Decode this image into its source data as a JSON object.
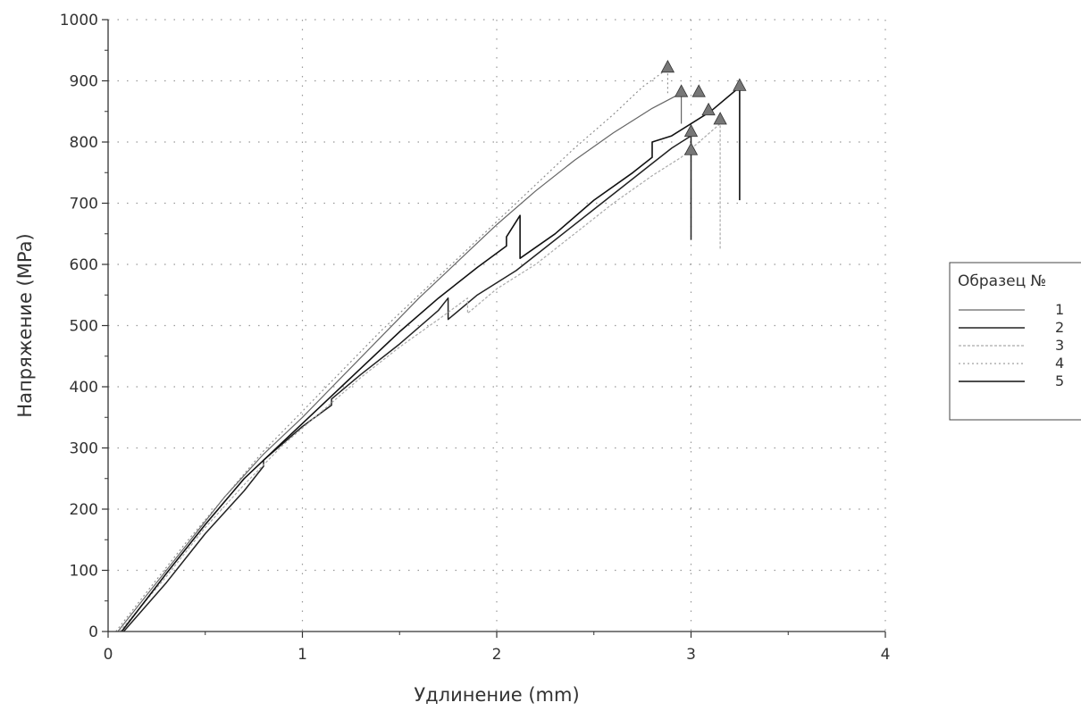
{
  "chart_data": {
    "type": "line",
    "title": "",
    "xlabel": "Удлинение (mm)",
    "ylabel": "Напряжение (MPa)",
    "xlim": [
      0,
      4
    ],
    "ylim": [
      0,
      1000
    ],
    "xticks": [
      0,
      1,
      2,
      3,
      4
    ],
    "yticks": [
      0,
      100,
      200,
      300,
      400,
      500,
      600,
      700,
      800,
      900,
      1000
    ],
    "grid": true,
    "legend": {
      "title": "Образец №",
      "position": "right"
    },
    "colors": {
      "axis": "#333333",
      "grid": "#999999",
      "marker": "#777777",
      "marker_edge": "#333333"
    },
    "series": [
      {
        "name": "1",
        "color": "#666666",
        "points": [
          [
            0.05,
            0
          ],
          [
            0.2,
            60
          ],
          [
            0.4,
            140
          ],
          [
            0.6,
            220
          ],
          [
            0.8,
            290
          ],
          [
            1.0,
            350
          ],
          [
            1.2,
            415
          ],
          [
            1.4,
            480
          ],
          [
            1.6,
            545
          ],
          [
            1.8,
            605
          ],
          [
            2.0,
            665
          ],
          [
            2.2,
            720
          ],
          [
            2.4,
            770
          ],
          [
            2.6,
            815
          ],
          [
            2.8,
            855
          ],
          [
            2.95,
            880
          ],
          [
            2.95,
            830
          ]
        ],
        "break": [
          2.95,
          880
        ]
      },
      {
        "name": "2",
        "color": "#222222",
        "points": [
          [
            0.08,
            0
          ],
          [
            0.3,
            80
          ],
          [
            0.5,
            160
          ],
          [
            0.7,
            230
          ],
          [
            0.8,
            270
          ],
          [
            0.8,
            280
          ],
          [
            1.0,
            335
          ],
          [
            1.15,
            370
          ],
          [
            1.15,
            380
          ],
          [
            1.3,
            420
          ],
          [
            1.5,
            470
          ],
          [
            1.7,
            525
          ],
          [
            1.75,
            545
          ],
          [
            1.75,
            510
          ],
          [
            1.9,
            550
          ],
          [
            2.1,
            590
          ],
          [
            2.3,
            640
          ],
          [
            2.5,
            690
          ],
          [
            2.7,
            740
          ],
          [
            2.8,
            765
          ],
          [
            2.9,
            790
          ],
          [
            3.0,
            810
          ],
          [
            3.0,
            640
          ]
        ],
        "break": [
          3.0,
          810
        ]
      },
      {
        "name": "3",
        "color": "#aaaaaa",
        "points": [
          [
            0.06,
            0
          ],
          [
            0.3,
            90
          ],
          [
            0.5,
            170
          ],
          [
            0.7,
            240
          ],
          [
            0.9,
            305
          ],
          [
            1.1,
            360
          ],
          [
            1.3,
            415
          ],
          [
            1.5,
            465
          ],
          [
            1.7,
            510
          ],
          [
            1.85,
            545
          ],
          [
            1.85,
            520
          ],
          [
            2.0,
            560
          ],
          [
            2.2,
            600
          ],
          [
            2.4,
            650
          ],
          [
            2.6,
            700
          ],
          [
            2.8,
            745
          ],
          [
            2.95,
            775
          ],
          [
            3.15,
            830
          ],
          [
            3.15,
            625
          ]
        ],
        "break": [
          3.15,
          830
        ]
      },
      {
        "name": "4",
        "color": "#888888",
        "points": [
          [
            0.04,
            0
          ],
          [
            0.2,
            65
          ],
          [
            0.4,
            145
          ],
          [
            0.6,
            220
          ],
          [
            0.8,
            295
          ],
          [
            1.0,
            360
          ],
          [
            1.2,
            425
          ],
          [
            1.4,
            490
          ],
          [
            1.6,
            550
          ],
          [
            1.8,
            610
          ],
          [
            2.0,
            670
          ],
          [
            2.2,
            730
          ],
          [
            2.4,
            790
          ],
          [
            2.6,
            845
          ],
          [
            2.75,
            890
          ],
          [
            2.88,
            920
          ],
          [
            2.88,
            880
          ]
        ],
        "break": [
          2.88,
          920
        ]
      },
      {
        "name": "5",
        "color": "#111111",
        "points": [
          [
            0.07,
            0
          ],
          [
            0.3,
            95
          ],
          [
            0.5,
            175
          ],
          [
            0.7,
            250
          ],
          [
            0.9,
            310
          ],
          [
            1.1,
            370
          ],
          [
            1.3,
            430
          ],
          [
            1.5,
            490
          ],
          [
            1.7,
            545
          ],
          [
            1.9,
            595
          ],
          [
            2.05,
            630
          ],
          [
            2.05,
            645
          ],
          [
            2.12,
            680
          ],
          [
            2.12,
            610
          ],
          [
            2.3,
            650
          ],
          [
            2.5,
            705
          ],
          [
            2.7,
            750
          ],
          [
            2.8,
            775
          ],
          [
            2.8,
            800
          ],
          [
            2.9,
            810
          ],
          [
            3.1,
            850
          ],
          [
            3.25,
            890
          ],
          [
            3.25,
            705
          ]
        ],
        "break": [
          3.25,
          890
        ]
      }
    ],
    "annotations": {
      "break_markers": [
        [
          2.88,
          920
        ],
        [
          2.95,
          880
        ],
        [
          3.04,
          880
        ],
        [
          3.09,
          850
        ],
        [
          3.25,
          890
        ],
        [
          3.0,
          815
        ],
        [
          3.0,
          785
        ],
        [
          3.15,
          835
        ]
      ]
    }
  }
}
